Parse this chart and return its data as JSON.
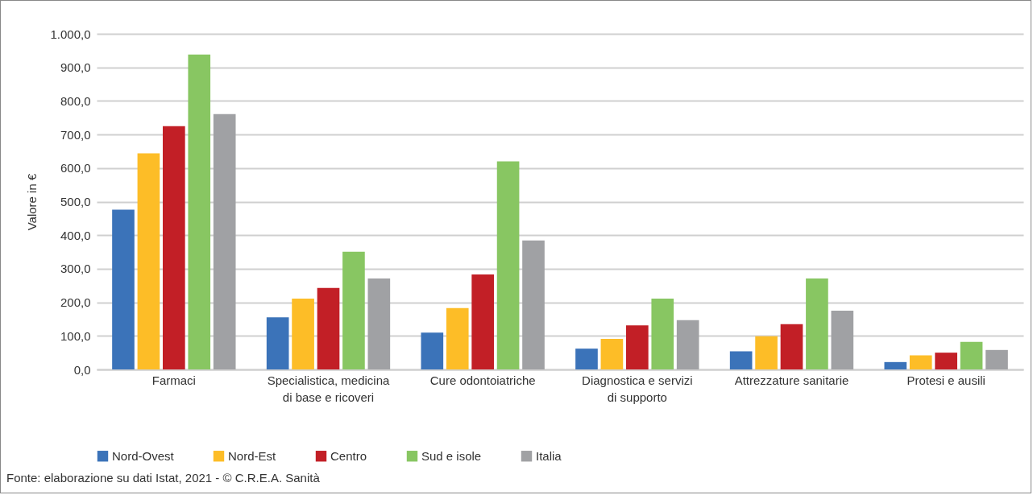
{
  "chart_data": {
    "type": "bar",
    "ylabel": "Valore in €",
    "categories": [
      "Farmaci",
      "Specialistica, medicina di base e ricoveri",
      "Cure odontoiatriche",
      "Diagnostica e servizi di supporto",
      "Attrezzature sanitarie",
      "Protesi e ausili"
    ],
    "series": [
      {
        "name": "Nord-Ovest",
        "color": "#3b73b9",
        "values": [
          476,
          155,
          110,
          62,
          54,
          22
        ]
      },
      {
        "name": "Nord-Est",
        "color": "#fdbd27",
        "values": [
          644,
          211,
          183,
          91,
          99,
          42
        ]
      },
      {
        "name": "Centro",
        "color": "#c21f26",
        "values": [
          725,
          243,
          283,
          131,
          135,
          50
        ]
      },
      {
        "name": "Sud e isole",
        "color": "#88c662",
        "values": [
          938,
          351,
          620,
          211,
          271,
          82
        ]
      },
      {
        "name": "Italia",
        "color": "#a0a1a4",
        "values": [
          761,
          271,
          384,
          147,
          175,
          58
        ]
      }
    ],
    "ylim": [
      0,
      1000
    ],
    "yticks": [
      {
        "value": 0,
        "label": "0,0"
      },
      {
        "value": 100,
        "label": "100,0"
      },
      {
        "value": 200,
        "label": "200,0"
      },
      {
        "value": 300,
        "label": "300,0"
      },
      {
        "value": 400,
        "label": "400,0"
      },
      {
        "value": 500,
        "label": "500,0"
      },
      {
        "value": 600,
        "label": "600,0"
      },
      {
        "value": 700,
        "label": "700,0"
      },
      {
        "value": 800,
        "label": "800,0"
      },
      {
        "value": 900,
        "label": "900,0"
      },
      {
        "value": 1000,
        "label": "1.000,0"
      }
    ],
    "grid": "y",
    "legend": "bottom",
    "annotations": [
      "Fonte: elaborazione su dati Istat, 2021 - © C.R.E.A. Sanità"
    ]
  }
}
